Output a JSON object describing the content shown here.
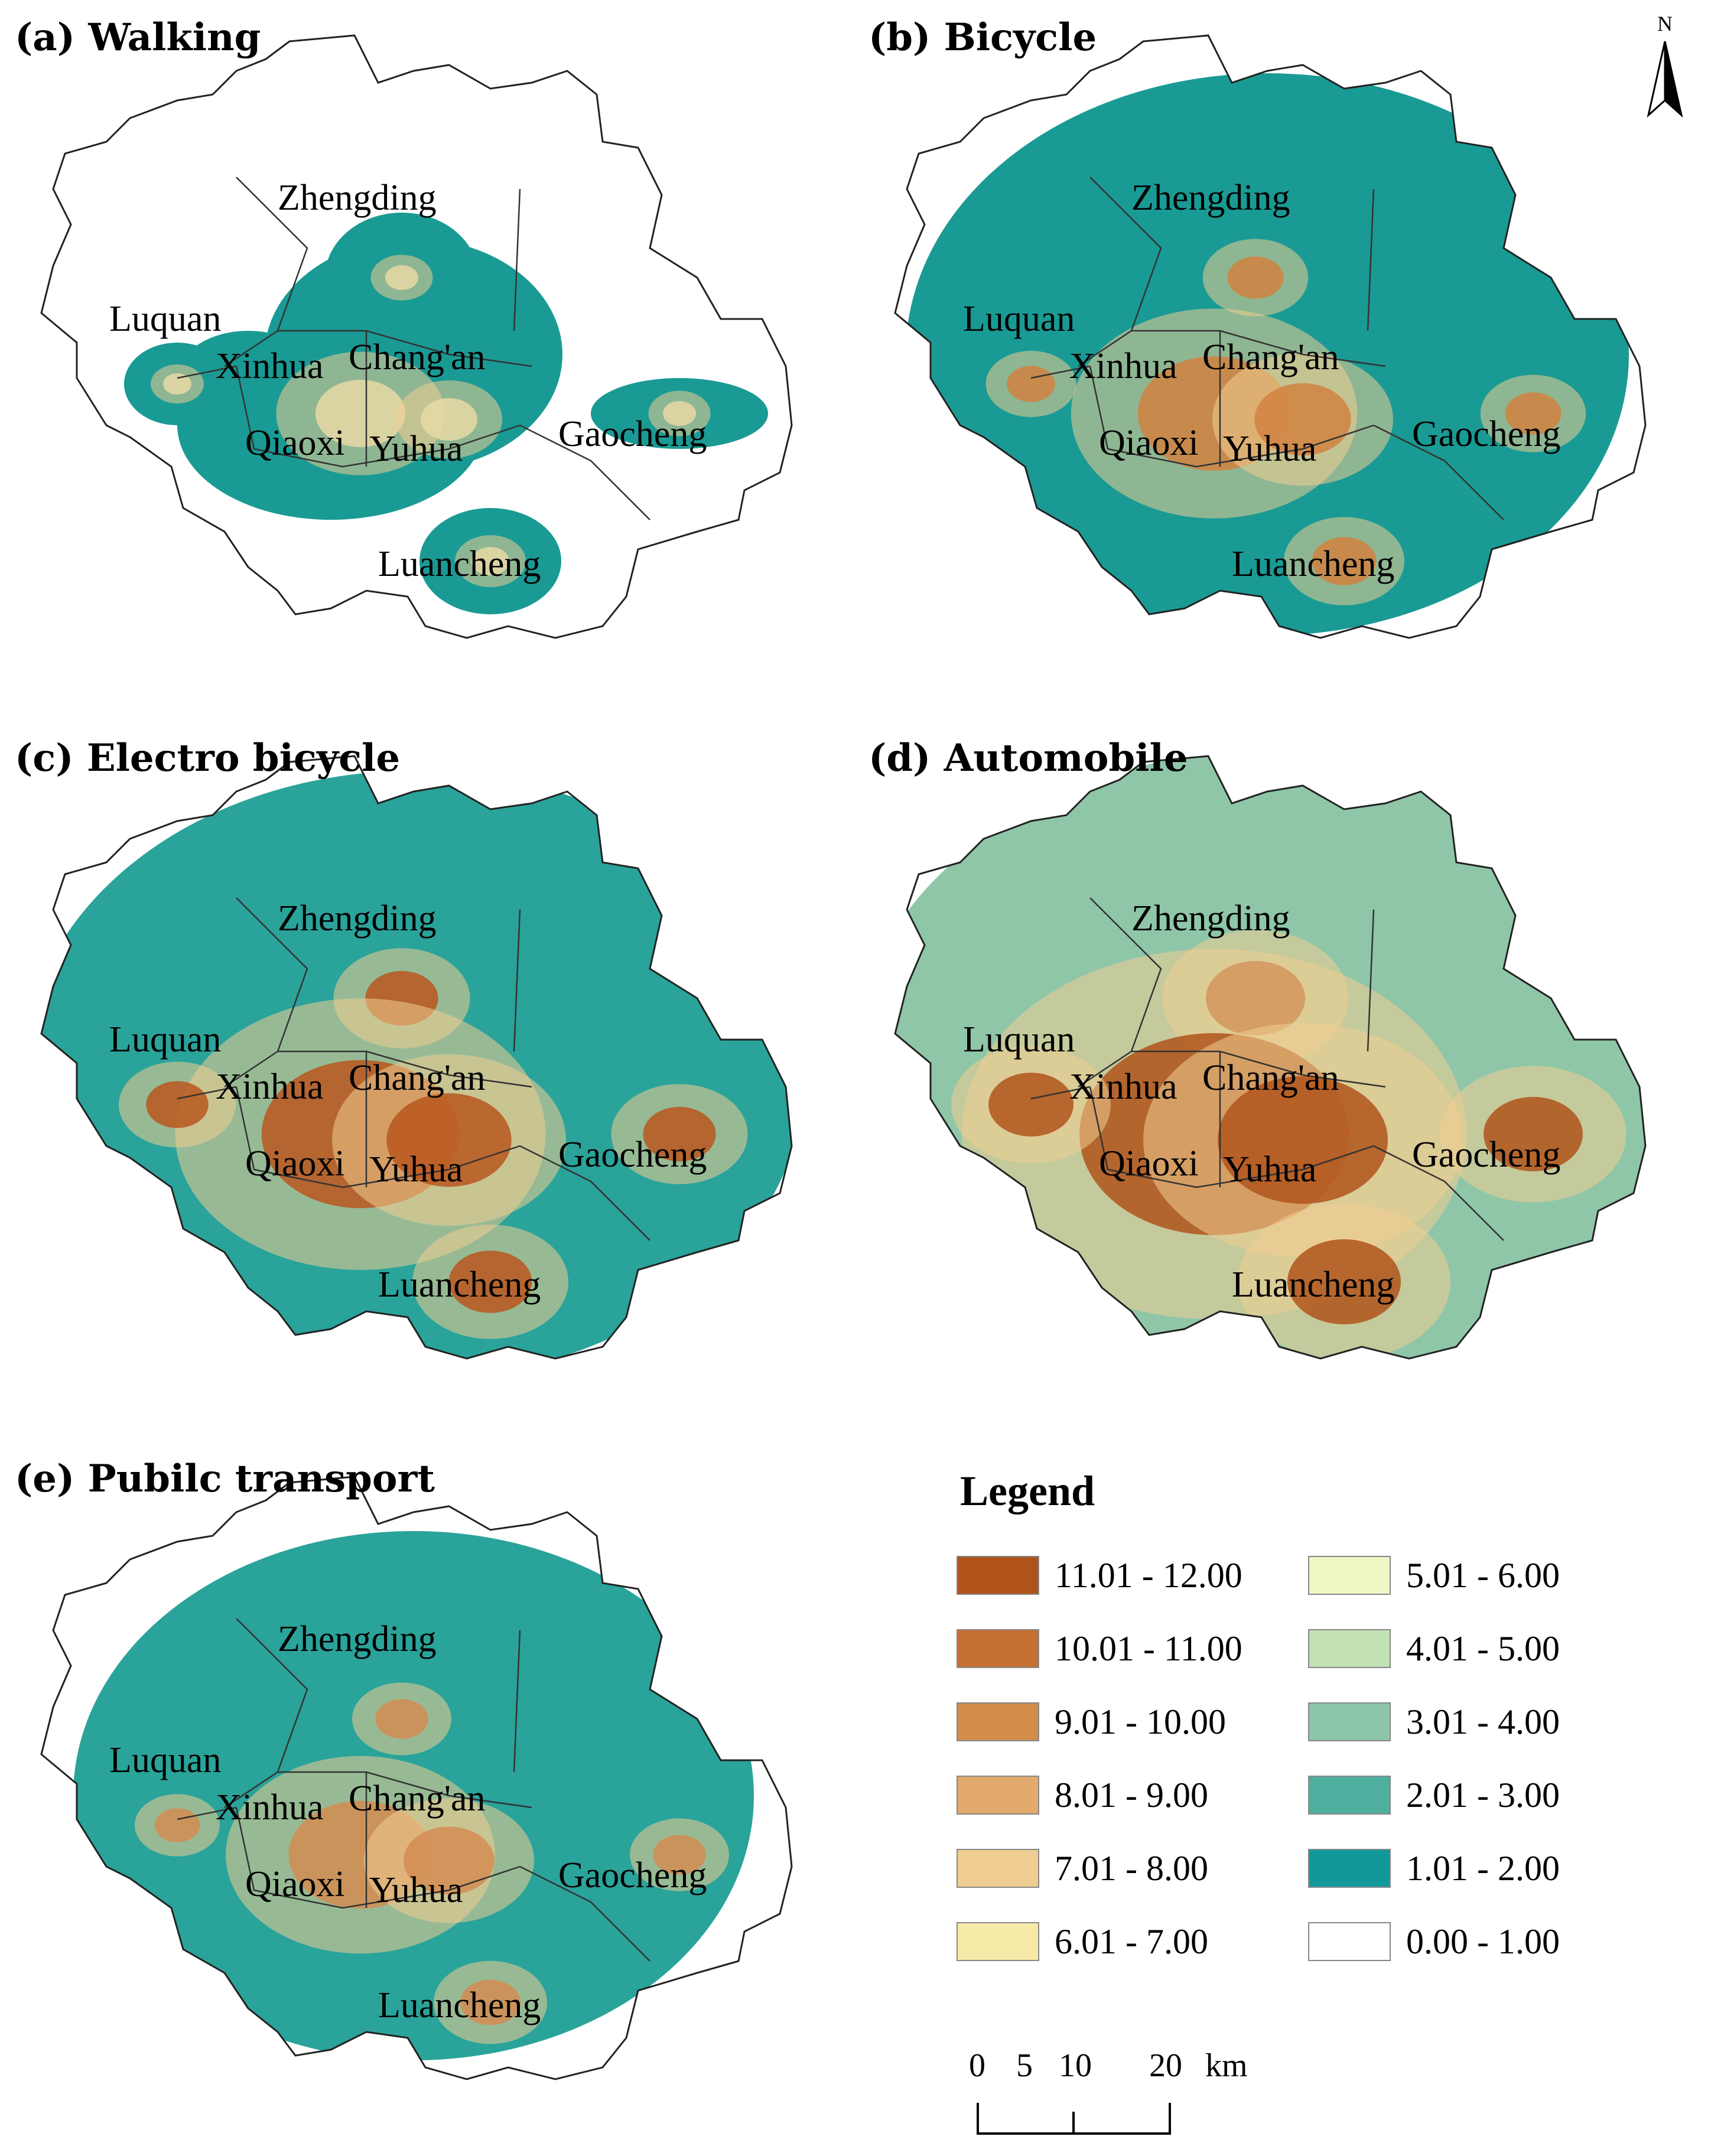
{
  "panels": [
    {
      "title": "(a) Walking",
      "fill": "#1a9a94",
      "coverage": 0.35,
      "core": "#e8d9a6",
      "hot": 0.0
    },
    {
      "title": "(b) Bicycle",
      "fill": "#1a9a94",
      "coverage": 0.85,
      "core": "#d1833f",
      "hot": 0.35
    },
    {
      "title": "(c) Electro bicycle",
      "fill": "#2aa39a",
      "coverage": 0.92,
      "core": "#b8561e",
      "hot": 0.6
    },
    {
      "title": "(d) Automobile",
      "fill": "#8fc6a8",
      "coverage": 0.98,
      "core": "#b0531b",
      "hot": 1.0
    },
    {
      "title": "(e) Pubilc transport",
      "fill": "#2aa39a",
      "coverage": 0.8,
      "core": "#d38c52",
      "hot": 0.3
    }
  ],
  "districts": [
    "Zhengding",
    "Luquan",
    "Xinhua",
    "Chang'an",
    "Qiaoxi",
    "Yuhua",
    "Gaocheng",
    "Luancheng"
  ],
  "legend": {
    "title": "Legend",
    "classes": [
      {
        "label": "11.01 - 12.00",
        "color": "#b0531b"
      },
      {
        "label": "10.01 - 11.00",
        "color": "#c66f32"
      },
      {
        "label": "9.01 - 10.00",
        "color": "#d38c4a"
      },
      {
        "label": "8.01 - 9.00",
        "color": "#e2aa6c"
      },
      {
        "label": "7.01 - 8.00",
        "color": "#f0cd92"
      },
      {
        "label": "6.01 - 7.00",
        "color": "#f7e9a8"
      },
      {
        "label": "5.01 - 6.00",
        "color": "#eff6c4"
      },
      {
        "label": "4.01 - 5.00",
        "color": "#c2e1b5"
      },
      {
        "label": "3.01 - 4.00",
        "color": "#8cc5a8"
      },
      {
        "label": "2.01 - 3.00",
        "color": "#4eaf9f"
      },
      {
        "label": "1.01 - 2.00",
        "color": "#11999a"
      },
      {
        "label": "0.00 - 1.00",
        "color": "#ffffff"
      }
    ]
  },
  "scale_bar": {
    "ticks": [
      "0",
      "5",
      "10",
      "20"
    ],
    "unit": "km"
  },
  "north_arrow": {
    "label": "N"
  }
}
